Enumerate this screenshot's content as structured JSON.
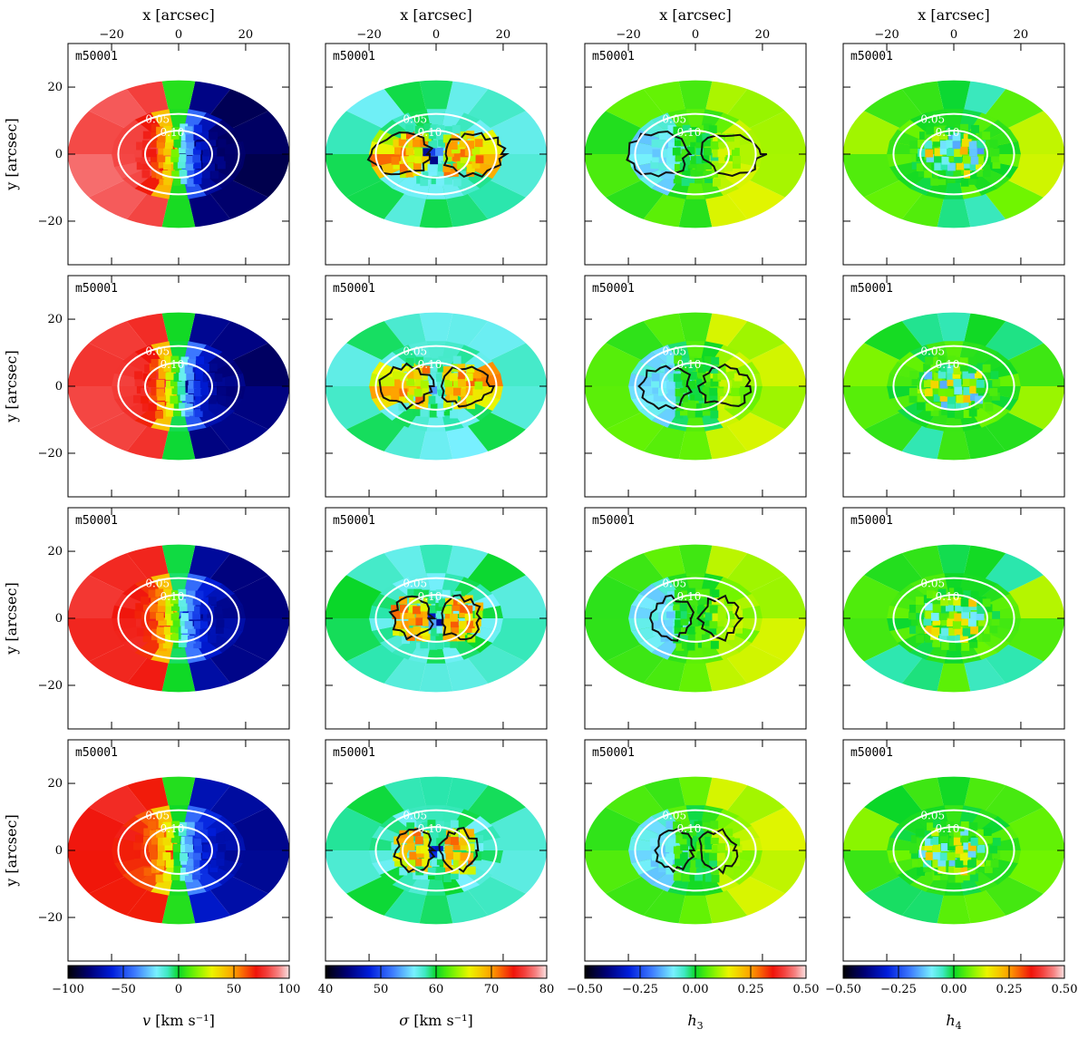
{
  "chart_data": {
    "type": "heatmap",
    "description_axes": {
      "top_xlabel": "x [arcsec]",
      "left_ylabel": "y [arcsec]",
      "x_range": [
        -33,
        33
      ],
      "y_range": [
        -33,
        33
      ],
      "x_ticks": [
        -20,
        0,
        20
      ],
      "y_ticks": [
        20,
        0,
        -20
      ],
      "x_tick_labels": [
        "−20",
        "0",
        "20"
      ],
      "y_tick_labels": [
        "20",
        "0",
        "−20"
      ]
    },
    "panel_label": "m50001",
    "rows": 4,
    "columns": [
      {
        "key": "v",
        "colorbar_label": "v [km s⁻¹]",
        "colorbar_label_main": "v",
        "colorbar_label_unit": "[km s⁻¹]",
        "colormap": "sauron",
        "range": [
          -100,
          100
        ],
        "ticks": [
          -100,
          -50,
          0,
          50,
          100
        ],
        "tick_labels": [
          "−100",
          "−50",
          "0",
          "50",
          "100"
        ]
      },
      {
        "key": "sigma",
        "colorbar_label": "σ [km s⁻¹]",
        "colorbar_label_main": "σ",
        "colorbar_label_unit": "[km s⁻¹]",
        "colormap": "sauron",
        "range": [
          40,
          80
        ],
        "ticks": [
          40,
          50,
          60,
          70,
          80
        ],
        "tick_labels": [
          "40",
          "50",
          "60",
          "70",
          "80"
        ]
      },
      {
        "key": "h3",
        "colorbar_label": "h3",
        "colorbar_label_main": "h",
        "colorbar_label_unit": "3",
        "colormap": "sauron",
        "range": [
          -0.5,
          0.5
        ],
        "ticks": [
          -0.5,
          -0.25,
          0,
          0.25,
          0.5
        ],
        "tick_labels": [
          "−0.50",
          "−0.25",
          "0.00",
          "0.25",
          "0.50"
        ]
      },
      {
        "key": "h4",
        "colorbar_label": "h4",
        "colorbar_label_main": "h",
        "colorbar_label_unit": "4",
        "colormap": "sauron",
        "range": [
          -0.5,
          0.5
        ],
        "ticks": [
          -0.5,
          -0.25,
          0,
          0.25,
          0.5
        ],
        "tick_labels": [
          "−0.50",
          "−0.25",
          "0.00",
          "0.25",
          "0.50"
        ]
      }
    ],
    "field_ellipse_arcsec": {
      "a": 33,
      "b": 22
    },
    "isophotes": [
      {
        "label": "0.05",
        "a": 18,
        "b": 12
      },
      {
        "label": "0.10",
        "a": 10,
        "b": 7
      }
    ],
    "v_profile": {
      "amplitude": 85,
      "scale_arcsec": 7
    },
    "sigma_profile": {
      "outer": 58,
      "inner_peak": 68
    },
    "h3_profile": {
      "background": 0.02
    },
    "h4_profile": {
      "background": 0.03
    },
    "contour_extent_arcsec_by_row": [
      20,
      16,
      13,
      12
    ]
  },
  "colors": {
    "isophote": "#ffffff",
    "contour": "#111111",
    "frame": "#000000"
  }
}
